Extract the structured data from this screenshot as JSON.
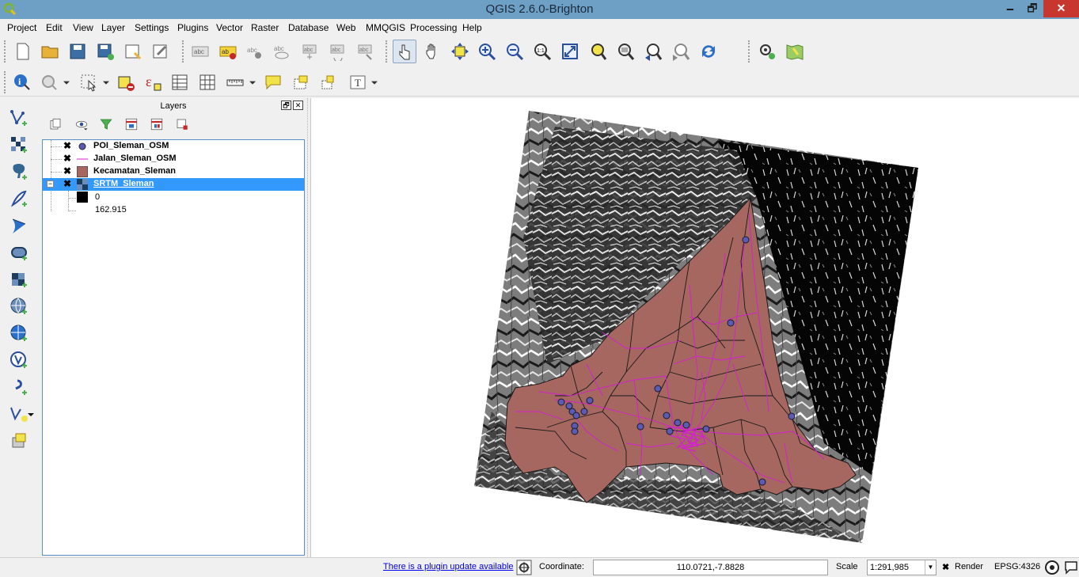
{
  "window": {
    "title": "QGIS 2.6.0-Brighton",
    "min_label": "🗕",
    "max_label": "🗗",
    "close_label": "✕"
  },
  "menu": [
    {
      "label": "Project",
      "key": "project"
    },
    {
      "label": "Edit",
      "key": "edit"
    },
    {
      "label": "View",
      "key": "view"
    },
    {
      "label": "Layer",
      "key": "layer"
    },
    {
      "label": "Settings",
      "key": "settings"
    },
    {
      "label": "Plugins",
      "key": "plugins"
    },
    {
      "label": "Vector",
      "key": "vector"
    },
    {
      "label": "Raster",
      "key": "raster"
    },
    {
      "label": "Database",
      "key": "database"
    },
    {
      "label": "Web",
      "key": "web"
    },
    {
      "label": "MMQGIS",
      "key": "mmqgis"
    },
    {
      "label": "Processing",
      "key": "processing"
    },
    {
      "label": "Help",
      "key": "help"
    }
  ],
  "toolbar_icons": {
    "row1": [
      "new-project-icon",
      "open-project-icon",
      "save-project-icon",
      "save-as-icon",
      "new-print-composer-icon",
      "composer-manager-icon",
      "label-icon",
      "layer-labeling-icon",
      "pin-labels-icon",
      "show-hide-labels-icon",
      "move-label-icon",
      "rotate-label-icon",
      "change-label-icon",
      "touch-zoom-pan-icon",
      "pan-icon",
      "pan-to-selection-icon",
      "zoom-in-icon",
      "zoom-out-icon",
      "zoom-actual-size-icon",
      "zoom-full-icon",
      "zoom-to-selection-icon",
      "zoom-to-layer-icon",
      "zoom-last-icon",
      "zoom-next-icon",
      "refresh-icon",
      "gps-info-icon",
      "georeferencer-icon"
    ],
    "row2": [
      "identify-icon",
      "map-tips-icon",
      "select-features-icon",
      "deselect-icon",
      "field-calculator-icon",
      "attribute-table-icon",
      "statistics-icon",
      "measure-line-icon",
      "text-annotation-icon",
      "form-annotation-icon",
      "move-annotation-icon",
      "text-tool-icon"
    ]
  },
  "left_toolbar_icons": [
    "add-vector-layer-icon",
    "add-raster-layer-icon",
    "add-postgis-layer-icon",
    "add-spatialite-layer-icon",
    "add-mssql-layer-icon",
    "add-oracle-layer-icon",
    "add-wms-layer-icon",
    "add-wcs-layer-icon",
    "add-wfs-layer-icon",
    "add-delimited-text-icon",
    "new-shapefile-icon",
    "add-virtual-layer-icon"
  ],
  "layers_panel": {
    "title": "Layers",
    "float_label": "🗗",
    "close_label": "✕",
    "layers": [
      {
        "name": "POI_Sleman_OSM",
        "checked": "✖",
        "type": "point",
        "color": "#5b5bb5"
      },
      {
        "name": "Jalan_Sleman_OSM",
        "checked": "✖",
        "type": "line",
        "color": "#d61ed6"
      },
      {
        "name": "Kecamatan_Sleman",
        "checked": "✖",
        "type": "polygon",
        "color": "#a5675f"
      },
      {
        "name": "SRTM_Sleman",
        "checked": "✖",
        "type": "raster",
        "selected": true,
        "expand": "−"
      }
    ],
    "raster_legend": [
      {
        "label": "0",
        "color": "#000000"
      },
      {
        "label": "162.915",
        "color": "#ffffff"
      }
    ]
  },
  "map": {
    "polygon_fill": "#a5675f",
    "road_color": "#d61ed6",
    "poi_color": "#5b5bb5",
    "boundary_color": "#1a1a1a"
  },
  "statusbar": {
    "plugin_update": "There is a plugin update available",
    "coordinate_label": "Coordinate:",
    "coordinate_value": "110.0721,-7.8828",
    "scale_label": "Scale",
    "scale_value": "1:291,985",
    "render_label": "Render",
    "render_checked": "✖",
    "crs": "EPSG:4326"
  }
}
